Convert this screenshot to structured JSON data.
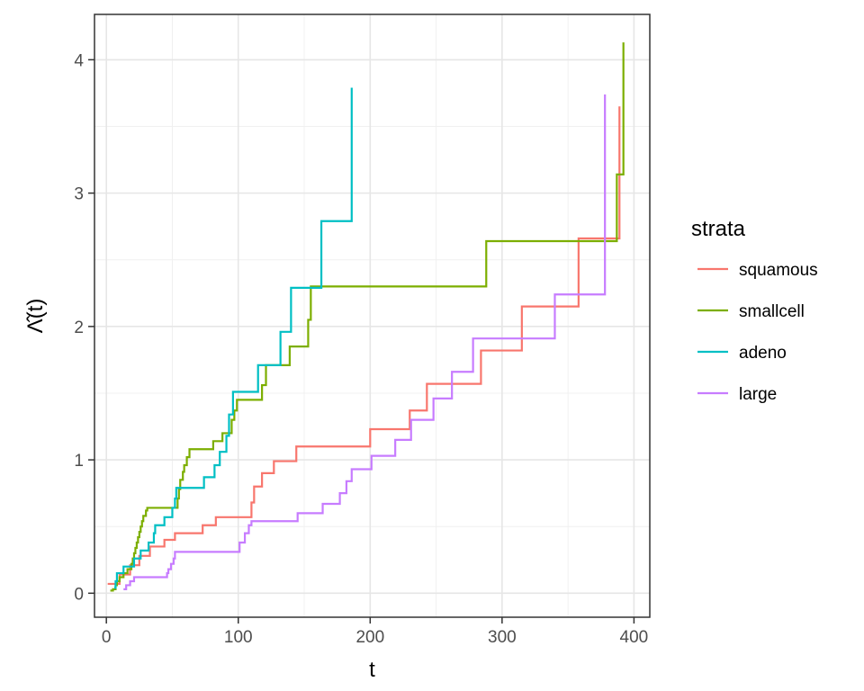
{
  "chart_data": {
    "type": "line",
    "step": true,
    "xlabel": "t",
    "ylabel": "Λ̂(t)",
    "xlim": [
      -9,
      412
    ],
    "ylim": [
      -0.18,
      4.34
    ],
    "x_ticks": [
      0,
      100,
      200,
      300,
      400
    ],
    "x_tick_labels": [
      "0",
      "100",
      "200",
      "300",
      "400"
    ],
    "y_ticks": [
      0,
      1,
      2,
      3,
      4
    ],
    "y_tick_labels": [
      "0",
      "1",
      "2",
      "3",
      "4"
    ],
    "grid": true,
    "legend": {
      "title": "strata",
      "position": "right"
    },
    "series": [
      {
        "name": "squamous",
        "color": "#F8766D",
        "points": [
          [
            1,
            0.07
          ],
          [
            8,
            0.07
          ],
          [
            10,
            0.14
          ],
          [
            15,
            0.14
          ],
          [
            18,
            0.21
          ],
          [
            21,
            0.21
          ],
          [
            25,
            0.28
          ],
          [
            30,
            0.28
          ],
          [
            33,
            0.35
          ],
          [
            42,
            0.35
          ],
          [
            44,
            0.4
          ],
          [
            49,
            0.4
          ],
          [
            52,
            0.45
          ],
          [
            72,
            0.45
          ],
          [
            73,
            0.51
          ],
          [
            81,
            0.51
          ],
          [
            83,
            0.57
          ],
          [
            107,
            0.57
          ],
          [
            110,
            0.68
          ],
          [
            111,
            0.68
          ],
          [
            112,
            0.8
          ],
          [
            117,
            0.8
          ],
          [
            118,
            0.9
          ],
          [
            126,
            0.9
          ],
          [
            127,
            0.99
          ],
          [
            143,
            0.99
          ],
          [
            144,
            1.1
          ],
          [
            199,
            1.1
          ],
          [
            200,
            1.23
          ],
          [
            228,
            1.23
          ],
          [
            230,
            1.37
          ],
          [
            242,
            1.37
          ],
          [
            243,
            1.57
          ],
          [
            283,
            1.57
          ],
          [
            284,
            1.82
          ],
          [
            314,
            1.82
          ],
          [
            315,
            2.15
          ],
          [
            357,
            2.15
          ],
          [
            358,
            2.66
          ],
          [
            388,
            2.66
          ],
          [
            389,
            3.65
          ]
        ]
      },
      {
        "name": "smallcell",
        "color": "#7CAE00",
        "points": [
          [
            3,
            0.02
          ],
          [
            5,
            0.03
          ],
          [
            7,
            0.06
          ],
          [
            8,
            0.09
          ],
          [
            10,
            0.12
          ],
          [
            13,
            0.15
          ],
          [
            16,
            0.18
          ],
          [
            19,
            0.22
          ],
          [
            20,
            0.26
          ],
          [
            21,
            0.3
          ],
          [
            22,
            0.34
          ],
          [
            23,
            0.38
          ],
          [
            24,
            0.42
          ],
          [
            25,
            0.46
          ],
          [
            26,
            0.5
          ],
          [
            27,
            0.54
          ],
          [
            28,
            0.58
          ],
          [
            30,
            0.62
          ],
          [
            31,
            0.64
          ],
          [
            53,
            0.64
          ],
          [
            54,
            0.71
          ],
          [
            55,
            0.78
          ],
          [
            56,
            0.85
          ],
          [
            58,
            0.91
          ],
          [
            59,
            0.96
          ],
          [
            61,
            1.02
          ],
          [
            63,
            1.08
          ],
          [
            80,
            1.08
          ],
          [
            81,
            1.14
          ],
          [
            87,
            1.14
          ],
          [
            88,
            1.2
          ],
          [
            94,
            1.2
          ],
          [
            95,
            1.3
          ],
          [
            97,
            1.37
          ],
          [
            99,
            1.45
          ],
          [
            117,
            1.45
          ],
          [
            118,
            1.56
          ],
          [
            120,
            1.56
          ],
          [
            121,
            1.71
          ],
          [
            138,
            1.71
          ],
          [
            139,
            1.85
          ],
          [
            152,
            1.85
          ],
          [
            153,
            2.05
          ],
          [
            155,
            2.3
          ],
          [
            287,
            2.3
          ],
          [
            288,
            2.64
          ],
          [
            386,
            2.64
          ],
          [
            387,
            3.14
          ],
          [
            391,
            3.14
          ],
          [
            392,
            4.13
          ]
        ]
      },
      {
        "name": "adeno",
        "color": "#00BFC4",
        "points": [
          [
            6,
            0.04
          ],
          [
            7,
            0.09
          ],
          [
            8,
            0.15
          ],
          [
            12,
            0.15
          ],
          [
            13,
            0.2
          ],
          [
            19,
            0.2
          ],
          [
            21,
            0.26
          ],
          [
            25,
            0.26
          ],
          [
            26,
            0.32
          ],
          [
            31,
            0.32
          ],
          [
            32,
            0.38
          ],
          [
            35,
            0.38
          ],
          [
            36,
            0.45
          ],
          [
            37,
            0.51
          ],
          [
            43,
            0.51
          ],
          [
            44,
            0.57
          ],
          [
            49,
            0.57
          ],
          [
            50,
            0.64
          ],
          [
            52,
            0.71
          ],
          [
            53,
            0.79
          ],
          [
            73,
            0.79
          ],
          [
            74,
            0.87
          ],
          [
            81,
            0.87
          ],
          [
            82,
            0.96
          ],
          [
            84,
            0.96
          ],
          [
            86,
            1.06
          ],
          [
            90,
            1.06
          ],
          [
            91,
            1.18
          ],
          [
            93,
            1.34
          ],
          [
            96,
            1.51
          ],
          [
            114,
            1.51
          ],
          [
            115,
            1.71
          ],
          [
            131,
            1.71
          ],
          [
            132,
            1.96
          ],
          [
            139,
            1.96
          ],
          [
            140,
            2.29
          ],
          [
            162,
            2.29
          ],
          [
            163,
            2.79
          ],
          [
            185,
            2.79
          ],
          [
            186,
            3.79
          ]
        ]
      },
      {
        "name": "large",
        "color": "#C77CFF",
        "points": [
          [
            13,
            0.03
          ],
          [
            15,
            0.06
          ],
          [
            18,
            0.09
          ],
          [
            21,
            0.12
          ],
          [
            44,
            0.12
          ],
          [
            46,
            0.15
          ],
          [
            47,
            0.18
          ],
          [
            49,
            0.22
          ],
          [
            51,
            0.26
          ],
          [
            52,
            0.31
          ],
          [
            95,
            0.31
          ],
          [
            101,
            0.38
          ],
          [
            105,
            0.45
          ],
          [
            108,
            0.51
          ],
          [
            110,
            0.54
          ],
          [
            142,
            0.54
          ],
          [
            145,
            0.6
          ],
          [
            162,
            0.6
          ],
          [
            164,
            0.67
          ],
          [
            176,
            0.67
          ],
          [
            177,
            0.75
          ],
          [
            182,
            0.84
          ],
          [
            186,
            0.93
          ],
          [
            200,
            0.93
          ],
          [
            201,
            1.03
          ],
          [
            217,
            1.03
          ],
          [
            219,
            1.15
          ],
          [
            228,
            1.15
          ],
          [
            231,
            1.3
          ],
          [
            247,
            1.3
          ],
          [
            248,
            1.46
          ],
          [
            261,
            1.46
          ],
          [
            262,
            1.66
          ],
          [
            277,
            1.66
          ],
          [
            278,
            1.91
          ],
          [
            339,
            1.91
          ],
          [
            340,
            2.24
          ],
          [
            377,
            2.24
          ],
          [
            378,
            2.74
          ],
          [
            378,
            3.74
          ]
        ]
      }
    ]
  }
}
